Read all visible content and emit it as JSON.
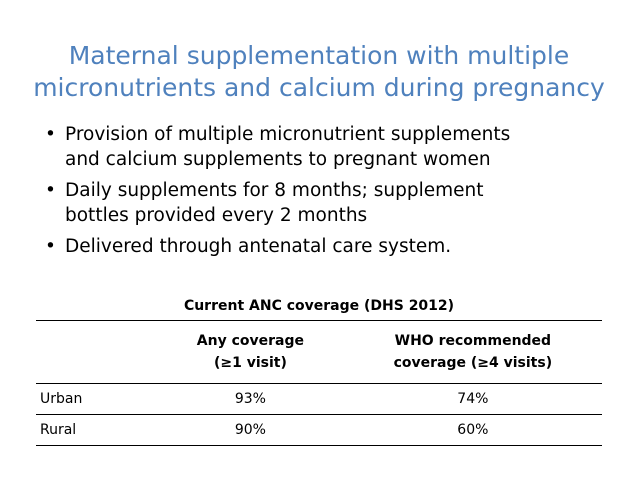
{
  "slide": {
    "title_line1": "Maternal supplementation with multiple",
    "title_line2": "micronutrients and calcium during pregnancy",
    "bullets": [
      {
        "line1": "Provision of multiple micronutrient supplements",
        "line2": "and calcium supplements to pregnant women"
      },
      {
        "line1": "Daily supplements for 8 months; supplement",
        "line2": "bottles provided every 2 months"
      },
      {
        "line1": "Delivered through antenatal care system.",
        "line2": ""
      }
    ],
    "bullet_glyph": "•"
  },
  "table": {
    "caption": "Current ANC coverage (DHS 2012)",
    "headers": {
      "blank": "",
      "any_line1": "Any coverage",
      "any_line2": "(≥1 visit)",
      "who_line1": "WHO recommended",
      "who_line2": "coverage (≥4 visits)"
    },
    "rows": [
      {
        "label": "Urban",
        "any": "93%",
        "who": "74%"
      },
      {
        "label": "Rural",
        "any": "90%",
        "who": "60%"
      }
    ]
  },
  "colors": {
    "title": "#4f81bd",
    "text": "#000000",
    "background": "#ffffff"
  }
}
